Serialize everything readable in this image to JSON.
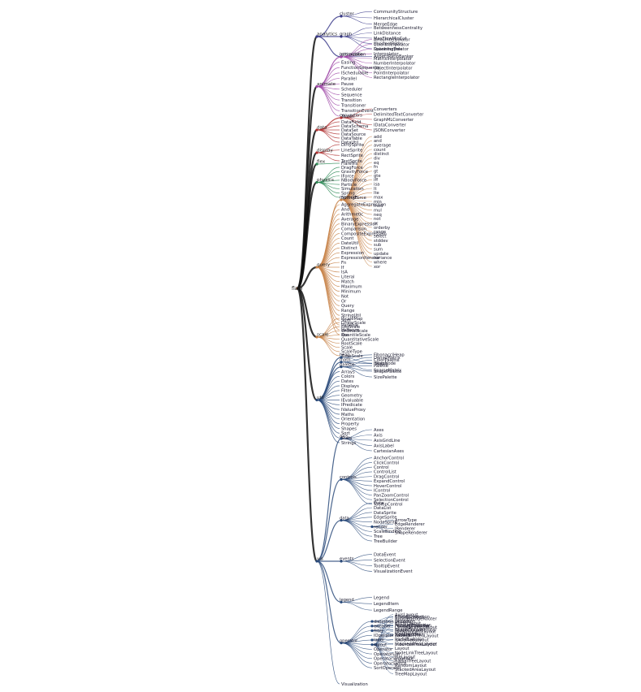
{
  "root": "flare",
  "groups": [
    {
      "label": "analytics",
      "color": "#3a3a8a",
      "subs": [
        {
          "label": "cluster",
          "children": [
            "CommunityStructure",
            "HierarchicalCluster",
            "MergeEdge"
          ]
        },
        {
          "label": "graph",
          "children": [
            "BetweennessCentrality",
            "LinkDistance",
            "MaxFlowMinCut",
            "ShortestPaths",
            "SpanningTree"
          ]
        },
        {
          "label": "optimization",
          "children": [
            "AspectRatioBanker"
          ]
        }
      ],
      "leaves": []
    },
    {
      "label": "animate",
      "color": "#a04aa8",
      "subs": [
        {
          "label": "interpolate",
          "children": [
            "ArrayInterpolator",
            "ColorInterpolator",
            "DateInterpolator",
            "Interpolator",
            "MatrixInterpolator",
            "NumberInterpolator",
            "ObjectInterpolator",
            "PointInterpolator",
            "RectangleInterpolator"
          ]
        }
      ],
      "leaves": [
        "Easing",
        "FunctionSequence",
        "ISchedulable",
        "Parallel",
        "Pause",
        "Scheduler",
        "Sequence",
        "Transition",
        "Transitioner",
        "TransitionEvent",
        "Tween"
      ]
    },
    {
      "label": "data",
      "color": "#b03030",
      "subs": [
        {
          "label": "converters",
          "children": [
            "Converters",
            "DelimitedTextConverter",
            "GraphMLConverter",
            "IDataConverter",
            "JSONConverter"
          ]
        }
      ],
      "leaves": [
        "DataField",
        "DataSchema",
        "DataSet",
        "DataSource",
        "DataTable",
        "DataUtil"
      ]
    },
    {
      "label": "display",
      "color": "#b03030",
      "subs": [],
      "leaves": [
        "DirtySprite",
        "LineSprite",
        "RectSprite",
        "TextSprite"
      ]
    },
    {
      "label": "flex",
      "color": "#2e8b57",
      "subs": [],
      "leaves": [
        "FlareVis"
      ]
    },
    {
      "label": "physics",
      "color": "#2e8b57",
      "subs": [],
      "leaves": [
        "DragForce",
        "GravityForce",
        "IForce",
        "NBodyForce",
        "Particle",
        "Simulation",
        "Spring",
        "SpringForce"
      ]
    },
    {
      "label": "query",
      "color": "#c8844a",
      "subs": [
        {
          "label": "methods",
          "children": [
            "add",
            "and",
            "average",
            "count",
            "distinct",
            "div",
            "eq",
            "fn",
            "gt",
            "gte",
            "iff",
            "isa",
            "lt",
            "lte",
            "max",
            "min",
            "mod",
            "mul",
            "neq",
            "not",
            "or",
            "orderby",
            "range",
            "select",
            "stddev",
            "sub",
            "sum",
            "update",
            "variance",
            "where",
            "xor"
          ]
        }
      ],
      "leaves": [
        "AggregateExpression",
        "And",
        "Arithmetic",
        "Average",
        "BinaryExpression",
        "Comparison",
        "CompositeExpression",
        "Count",
        "DateUtil",
        "Distinct",
        "Expression",
        "ExpressionIterator",
        "Fn",
        "If",
        "IsA",
        "Literal",
        "Match",
        "Maximum",
        "Minimum",
        "Not",
        "Or",
        "Query",
        "Range",
        "StringUtil",
        "Sum",
        "Variable",
        "Variance",
        "Xor"
      ]
    },
    {
      "label": "scale",
      "color": "#c8844a",
      "subs": [],
      "leaves": [
        "IScaleMap",
        "LinearScale",
        "LogScale",
        "OrdinalScale",
        "QuantileScale",
        "QuantitativeScale",
        "RootScale",
        "Scale",
        "ScaleType",
        "TimeScale"
      ]
    },
    {
      "label": "util",
      "color": "#2a4a7a",
      "subs": [
        {
          "label": "heap",
          "children": [
            "FibonacciHeap",
            "HeapNode"
          ]
        },
        {
          "label": "math",
          "children": [
            "DenseMatrix",
            "IMatrix",
            "SparseMatrix"
          ]
        },
        {
          "label": "palette",
          "children": [
            "ColorPalette",
            "Palette",
            "ShapePalette",
            "SizePalette"
          ]
        }
      ],
      "leaves": [
        "Arrays",
        "Colors",
        "Dates",
        "Displays",
        "Filter",
        "Geometry",
        "IEvaluable",
        "IPredicate",
        "IValueProxy",
        "Maths",
        "Orientation",
        "Property",
        "Shapes",
        "Sort",
        "Stats",
        "Strings"
      ]
    },
    {
      "label": "vis",
      "color": "#2a4a7a",
      "subs": [
        {
          "label": "axis",
          "children": [
            "Axes",
            "Axis",
            "AxisGridLine",
            "AxisLabel",
            "CartesianAxes"
          ]
        },
        {
          "label": "controls",
          "children": [
            "AnchorControl",
            "ClickControl",
            "Control",
            "ControlList",
            "DragControl",
            "ExpandControl",
            "HoverControl",
            "IControl",
            "PanZoomControl",
            "SelectionControl",
            "TooltipControl"
          ]
        },
        {
          "label": "data",
          "children": [
            "Data",
            "DataList",
            "DataSprite",
            "EdgeSprite",
            "NodeSprite",
            "render",
            "ScaleBinding",
            "Tree",
            "TreeBuilder"
          ]
        },
        {
          "label": "events",
          "children": [
            "DataEvent",
            "SelectionEvent",
            "TooltipEvent",
            "VisualizationEvent"
          ]
        },
        {
          "label": "legend",
          "children": [
            "Legend",
            "LegendItem",
            "LegendRange"
          ]
        },
        {
          "label": "operator",
          "children": [
            "distortion",
            "encoder",
            "filter",
            "IOperator",
            "label",
            "layout",
            "Operator",
            "OperatorList",
            "OperatorSequence",
            "OperatorSwitch",
            "SortOperator"
          ]
        }
      ],
      "leaves": [
        "Visualization"
      ]
    }
  ],
  "nested": {
    "render": [
      "ArrowType",
      "EdgeRenderer",
      "IRenderer",
      "ShapeRenderer"
    ],
    "distortion": [
      "BifocalDistortion",
      "Distortion",
      "FisheyeDistortion"
    ],
    "encoder": [
      "ColorEncoder",
      "Encoder",
      "PropertyEncoder",
      "ShapeEncoder",
      "SizeEncoder"
    ],
    "filter": [
      "FisheyeTreeFilter",
      "GraphDistanceFilter",
      "VisibilityFilter"
    ],
    "label": [
      "Labeler",
      "RadialLabeler",
      "StackedAreaLabeler"
    ],
    "layout": [
      "AxisLayout",
      "BundledEdgeRouter",
      "CircleLayout",
      "CirclePackingLayout",
      "DendrogramLayout",
      "ForceDirectedLayout",
      "IcicleTreeLayout",
      "IndentedTreeLayout",
      "Layout",
      "NodeLinkTreeLayout",
      "PieLayout",
      "RadialTreeLayout",
      "RandomLayout",
      "StackedAreaLayout",
      "TreeMapLayout"
    ]
  }
}
